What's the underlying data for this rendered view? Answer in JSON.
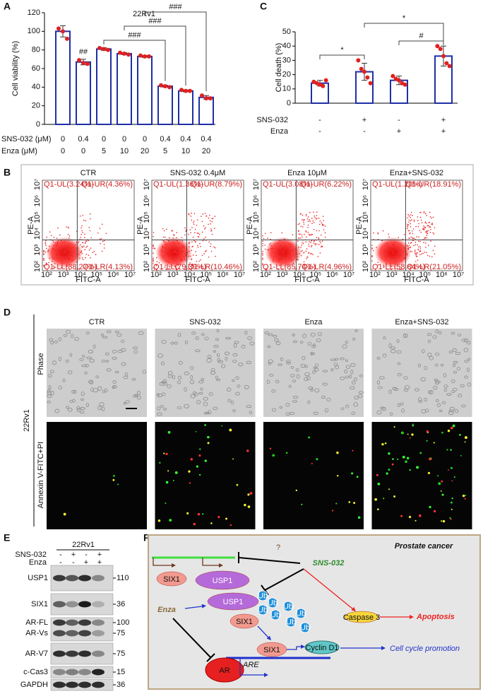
{
  "chart_data": [
    {
      "type": "bar",
      "panel": "A",
      "title": "22Rv1",
      "y_label": "Cell viability (%)",
      "values": [
        100,
        67,
        81,
        76,
        73,
        41,
        36,
        29
      ],
      "errors": [
        6,
        3,
        1.5,
        1,
        1,
        1,
        1,
        2
      ],
      "points": [
        [
          103,
          100,
          92
        ],
        [
          69,
          66,
          65
        ],
        [
          82,
          81,
          80
        ],
        [
          77,
          76,
          75
        ],
        [
          74,
          73,
          73
        ],
        [
          42,
          41,
          40
        ],
        [
          37,
          36,
          36
        ],
        [
          31,
          28,
          28
        ]
      ],
      "ylim": [
        0,
        120
      ],
      "yticks": [
        0,
        20,
        40,
        60,
        80,
        100,
        120
      ],
      "color": "#1f2fa6",
      "point_color": "#e02020",
      "rows": [
        {
          "name": "SNS-032 (μM)",
          "values": [
            0,
            0.4,
            0,
            0,
            0,
            0.4,
            0.4,
            0.4
          ]
        },
        {
          "name": "Enza (μM)",
          "values": [
            0,
            0,
            5,
            10,
            20,
            5,
            10,
            20
          ]
        }
      ],
      "annotations": [
        {
          "label": "##",
          "bars": [
            1
          ]
        },
        {
          "label": "###",
          "bars": [
            2,
            5
          ]
        },
        {
          "label": "###",
          "bars": [
            3,
            6
          ]
        },
        {
          "label": "###",
          "bars": [
            4,
            7
          ]
        }
      ]
    },
    {
      "type": "bar",
      "panel": "C",
      "y_label": "Cell death (%)",
      "values": [
        14,
        22,
        16,
        33
      ],
      "errors": [
        2,
        6,
        3,
        7
      ],
      "points": [
        [
          15,
          14,
          13,
          12,
          16
        ],
        [
          30,
          24,
          22,
          18,
          14
        ],
        [
          19,
          17,
          16,
          14,
          13
        ],
        [
          40,
          38,
          33,
          28,
          26
        ]
      ],
      "ylim": [
        0,
        50
      ],
      "yticks": [
        0,
        10,
        20,
        30,
        40,
        50
      ],
      "color": "#1f2fa6",
      "point_color": "#e02020",
      "rows": [
        {
          "name": "SNS-032",
          "values": [
            "-",
            "+",
            "-",
            "+"
          ]
        },
        {
          "name": "Enza",
          "values": [
            "-",
            "-",
            "+",
            "+"
          ]
        }
      ],
      "annotations": [
        {
          "label": "*",
          "bars": [
            0,
            1
          ]
        },
        {
          "label": "*",
          "bars": [
            1,
            3
          ]
        },
        {
          "label": "#",
          "bars": [
            2,
            3
          ]
        }
      ]
    }
  ],
  "flow_cytometry": {
    "panel": "B",
    "x_label": "FITC-A",
    "y_label": "PE-A",
    "ticks": [
      "10²",
      "10³",
      "10⁴",
      "10⁵",
      "10⁶",
      "10⁷"
    ],
    "plots": [
      {
        "title": "CTR",
        "ul": "Q1-UL(3.24%)",
        "ur": "Q1-UR(4.36%)",
        "ll": "Q1-LL(88.27%)",
        "lr": "Q1-LR(4.13%)"
      },
      {
        "title": "SNS-032 0.4μM",
        "ul": "Q1-UL(1.36%)",
        "ur": "Q1-UR(8.79%)",
        "ll": "Q1-LL(79.39%)",
        "lr": "Q1-LR(10.46%)"
      },
      {
        "title": "Enza 10μM",
        "ul": "Q1-UL(3.08%)",
        "ur": "Q1-UR(6.22%)",
        "ll": "Q1-LL(85.74%)",
        "lr": "Q1-LR(4.96%)"
      },
      {
        "title": "Enza+SNS-032",
        "ul": "Q1-UL(1.20%)",
        "ur": "Q1-UR(18.91%)",
        "ll": "Q1-LL(58.84%)",
        "lr": "Q1-LR(21.05%)"
      }
    ]
  },
  "microscopy": {
    "panel": "D",
    "cell_line": "22Rv1",
    "columns": [
      "CTR",
      "SNS-032",
      "Enza",
      "Enza+SNS-032"
    ],
    "rows": [
      "Phase",
      "Annexin V-FITC+PI"
    ]
  },
  "western_blot": {
    "panel": "E",
    "cell_line": "22Rv1",
    "treatments": [
      {
        "name": "SNS-032",
        "values": [
          "-",
          "+",
          "-",
          "+"
        ]
      },
      {
        "name": "Enza",
        "values": [
          "-",
          "-",
          "+",
          "+"
        ]
      }
    ],
    "bands": [
      {
        "label": "USP1",
        "marker": "110"
      },
      {
        "label": "SIX1",
        "marker": "36"
      },
      {
        "label": "AR-FL",
        "marker": "100"
      },
      {
        "label": "AR-Vs",
        "marker": "75"
      },
      {
        "label": "AR-V7",
        "marker": "75"
      },
      {
        "label": "c-Cas3",
        "marker": "15"
      },
      {
        "label": "GAPDH",
        "marker": "36"
      }
    ]
  },
  "diagram": {
    "panel": "F",
    "title": "Prostate cancer",
    "question": "?",
    "drug1": "SNS-032",
    "drug2": "Enza",
    "six1": "SIX1",
    "usp1": "USP1",
    "ub": "Ub",
    "caspase": "Caspase 3",
    "apoptosis": "Apoptosis",
    "cyclin": "Cyclin D1",
    "cycle": "Cell cycle promotion",
    "ar": "AR",
    "are": "ARE"
  }
}
